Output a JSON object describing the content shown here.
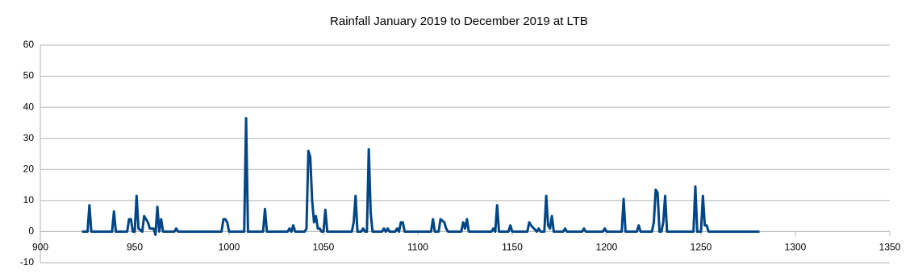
{
  "chart_data": {
    "type": "line",
    "title": "Rainfall January 2019 to December 2019 at LTB",
    "x": [
      922,
      925,
      926,
      927,
      938,
      939,
      940,
      946,
      947,
      948,
      949,
      950,
      951,
      952,
      954,
      955,
      956,
      957,
      958,
      959,
      960,
      961,
      962,
      963,
      964,
      965,
      971,
      972,
      973,
      996,
      997,
      998,
      999,
      1000,
      1008,
      1009,
      1010,
      1018,
      1019,
      1020,
      1031,
      1032,
      1033,
      1034,
      1035,
      1040,
      1041,
      1042,
      1043,
      1044,
      1045,
      1046,
      1047,
      1048,
      1049,
      1050,
      1051,
      1052,
      1065,
      1066,
      1067,
      1068,
      1070,
      1071,
      1072,
      1073,
      1074,
      1075,
      1076,
      1081,
      1082,
      1083,
      1084,
      1085,
      1088,
      1089,
      1090,
      1091,
      1092,
      1093,
      1107,
      1108,
      1109,
      1111,
      1112,
      1113,
      1114,
      1115,
      1116,
      1123,
      1124,
      1125,
      1126,
      1127,
      1139,
      1140,
      1141,
      1142,
      1143,
      1148,
      1149,
      1150,
      1158,
      1159,
      1160,
      1163,
      1164,
      1165,
      1167,
      1168,
      1169,
      1170,
      1171,
      1172,
      1177,
      1178,
      1179,
      1187,
      1188,
      1189,
      1198,
      1199,
      1200,
      1208,
      1209,
      1210,
      1216,
      1217,
      1218,
      1224,
      1225,
      1226,
      1227,
      1228,
      1229,
      1230,
      1231,
      1232,
      1246,
      1247,
      1248,
      1250,
      1251,
      1252,
      1253,
      1254,
      1281
    ],
    "series": [
      {
        "color": "#004586",
        "values": [
          0,
          0,
          8.5,
          0,
          0,
          6.5,
          0,
          0,
          4,
          4,
          0,
          0,
          11.5,
          1,
          0,
          5,
          4,
          3,
          1,
          1,
          1,
          -1,
          8,
          0,
          4,
          0,
          0,
          1,
          0,
          0,
          4,
          4,
          3,
          0,
          0,
          36.5,
          0,
          0,
          7.3,
          0,
          0,
          1,
          0,
          2,
          0,
          0,
          1,
          26,
          24,
          10,
          3,
          5,
          1,
          1,
          0,
          0,
          7,
          0,
          0,
          3,
          11.5,
          0,
          0,
          1,
          0,
          0,
          26.5,
          6,
          0,
          0,
          1,
          0,
          1,
          0,
          0,
          1,
          0,
          3,
          3,
          0,
          0,
          4,
          0,
          0,
          4,
          3.5,
          3,
          1,
          0,
          0,
          3,
          1,
          4,
          0,
          0,
          1,
          0,
          8.5,
          0,
          0,
          2,
          0,
          0,
          3,
          2,
          0,
          1,
          0,
          0,
          11.5,
          2,
          1,
          5,
          0,
          0,
          1,
          0,
          0,
          1,
          0,
          0,
          1,
          0,
          0,
          10.5,
          0,
          0,
          2,
          0,
          0,
          3,
          13.5,
          12.5,
          0,
          0,
          3,
          11.5,
          0,
          0,
          14.5,
          0,
          0,
          11.5,
          2,
          2,
          0,
          0
        ]
      }
    ],
    "xlim": [
      900,
      1350
    ],
    "xticks": [
      900,
      950,
      1000,
      1050,
      1100,
      1150,
      1200,
      1250,
      1300,
      1350
    ],
    "ylim": [
      -10,
      60
    ],
    "yticks": [
      -10,
      0,
      10,
      20,
      30,
      40,
      50,
      60
    ],
    "grid": true
  }
}
